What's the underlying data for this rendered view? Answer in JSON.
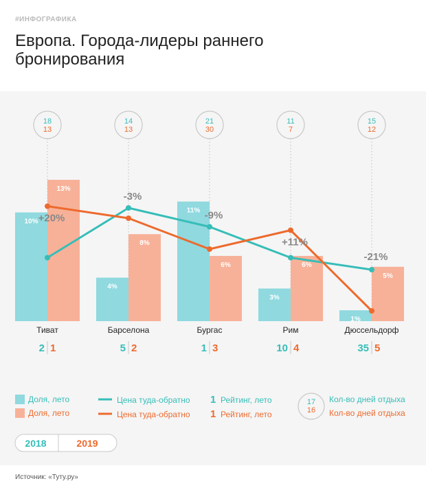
{
  "header": {
    "tag": "#ИНФОГРАФИКА",
    "title": "Европа. Города-лидеры раннего бронирования"
  },
  "source": "Источник: «Туту.ру»",
  "colors": {
    "c2018": "#36bdb8",
    "c2019": "#ed6a2d",
    "bar2018": "#8fd9df",
    "bar2019": "#f7b198",
    "pct": "#888888"
  },
  "legend": {
    "share_2018": "Доля, лето",
    "share_2019": "Доля, лето",
    "price_2018": "Цена туда-обратно",
    "price_2019": "Цена туда-обратно",
    "rating_num_2018": "1",
    "rating_2018": "Рейтинг, лето",
    "rating_num_2019": "1",
    "rating_2019": "Рейтинг, лето",
    "days_circle_2018": "17",
    "days_circle_2019": "16",
    "days_2018": "Кол-во дней отдыха",
    "days_2019": "Кол-во дней отдыха"
  },
  "toggle": {
    "y2018": "2018",
    "y2019": "2019"
  },
  "chart_data": {
    "type": "bar",
    "categories": [
      "Тиват",
      "Барселона",
      "Бургас",
      "Рим",
      "Дюссельдорф"
    ],
    "series": [
      {
        "year": "2018",
        "share_values": [
          10,
          4,
          11,
          3,
          1
        ],
        "share_labels": [
          "10%",
          "4%",
          "11%",
          "3%",
          "1%"
        ],
        "price_level": [
          0.37,
          0.66,
          0.55,
          0.37,
          0.3
        ],
        "rating": [
          "2",
          "5",
          "1",
          "10",
          "35"
        ],
        "days": [
          "18",
          "14",
          "21",
          "11",
          "15"
        ]
      },
      {
        "year": "2019",
        "share_values": [
          13,
          8,
          6,
          6,
          5
        ],
        "share_labels": [
          "13%",
          "8%",
          "6%",
          "6%",
          "5%"
        ],
        "price_level": [
          0.67,
          0.6,
          0.42,
          0.53,
          0.06
        ],
        "rating": [
          "1",
          "2",
          "3",
          "4",
          "5"
        ],
        "days": [
          "13",
          "13",
          "30",
          "7",
          "12"
        ]
      }
    ],
    "price_change": [
      "+20%",
      "-3%",
      "-9%",
      "+11%",
      "-21%"
    ],
    "ylim": [
      0,
      13
    ]
  }
}
